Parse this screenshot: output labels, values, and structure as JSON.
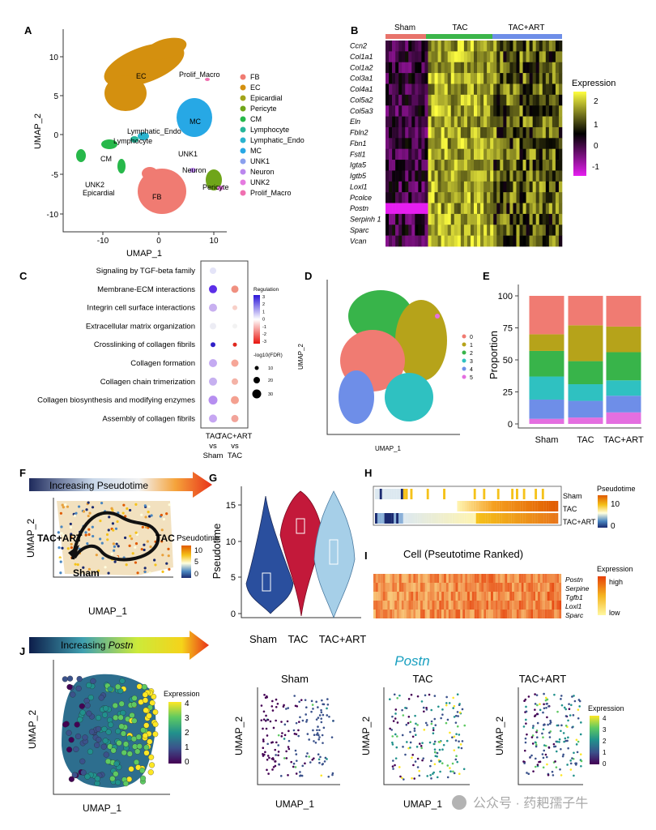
{
  "panel_letters": [
    "A",
    "B",
    "C",
    "D",
    "E",
    "F",
    "G",
    "H",
    "I",
    "J"
  ],
  "colors": {
    "FB": "#f07b72",
    "EC": "#d4900f",
    "Epicardial": "#a2a41a",
    "Pericyte": "#6fa519",
    "CM": "#27b84a",
    "Lymphocyte": "#27b69a",
    "Lymphatic_Endo": "#2ab3cf",
    "MC": "#27a8e5",
    "UNK1": "#8aa0ee",
    "Neuron": "#bb87ee",
    "UNK2": "#e57be0",
    "Prolif_Macro": "#f070b0",
    "sham": "#e8736b",
    "tac": "#3bb54a",
    "tacart": "#6e8ee8",
    "heat_low": "#e61ef0",
    "heat_mid": "#000000",
    "heat_high": "#ffff40",
    "viol_sham": "#2a4f9e",
    "viol_tac": "#c3193a",
    "viol_tacart": "#a6cfe8",
    "d0": "#f07b72",
    "d1": "#b6a31a",
    "d2": "#38b44a",
    "d3": "#2fc1c1",
    "d4": "#6e8ee8",
    "d5": "#e46fe0"
  },
  "panelA": {
    "xlabel": "UMAP_1",
    "ylabel": "UMAP_2",
    "xticks": [
      "-10",
      "0",
      "10"
    ],
    "yticks": [
      "10",
      "5",
      "0",
      "-5",
      "-10"
    ],
    "legend": [
      "FB",
      "EC",
      "Epicardial",
      "Pericyte",
      "CM",
      "Lymphocyte",
      "Lymphatic_Endo",
      "MC",
      "UNK1",
      "Neuron",
      "UNK2",
      "Prolif_Macro"
    ],
    "cluster_labels": [
      "EC",
      "Prolif_Macro",
      "MC",
      "Lymphatic_Endo",
      "Lymphocyte",
      "CM",
      "UNK1",
      "Neuron",
      "UNK2",
      "Epicardial",
      "FB",
      "Pericyte"
    ]
  },
  "panelB": {
    "groups": [
      "Sham",
      "TAC",
      "TAC+ART"
    ],
    "genes": [
      "Ccn2",
      "Col1a1",
      "Col1a2",
      "Col3a1",
      "Col4a1",
      "Col5a2",
      "Col5a3",
      "Eln",
      "Fbln2",
      "Fbn1",
      "Fstl1",
      "Igta5",
      "Igtb5",
      "Loxl1",
      "Pcolce",
      "Postn",
      "Serpinh 1",
      "Sparc",
      "Vcan"
    ],
    "legend_title": "Expression",
    "legend_ticks": [
      "2",
      "1",
      "0",
      "-1"
    ]
  },
  "panelC": {
    "terms": [
      "Signaling by TGF-beta family",
      "Membrane-ECM interactions",
      "Integrin cell surface interactions",
      "Extracellular matrix organization",
      "Crosslinking of collagen fibrils",
      "Collagen formation",
      "Collagen chain trimerization",
      "Collagen biosynthesis and modifying enzymes",
      "Assembly of collagen fibrils"
    ],
    "comparisons": [
      "TAC vs Sham",
      "TAC+ART vs TAC"
    ],
    "reg_title": "Regulation",
    "reg_ticks": [
      "3",
      "2",
      "1",
      "0",
      "-1",
      "-2",
      "-3"
    ],
    "size_title": "-log10(FDR)",
    "size_ticks": [
      "10",
      "20",
      "30"
    ]
  },
  "panelD": {
    "xlabel": "UMAP_1",
    "ylabel": "UMAP_2",
    "legend": [
      "0",
      "1",
      "2",
      "3",
      "4",
      "5"
    ]
  },
  "chart_data": {
    "type": "bar",
    "title": "",
    "xlabel": "",
    "ylabel": "Proportion",
    "categories": [
      "Sham",
      "TAC",
      "TAC+ART"
    ],
    "ylim": [
      0,
      100
    ],
    "yticks": [
      "100",
      "75",
      "50",
      "25",
      "0"
    ],
    "series": [
      {
        "color": "#e46fe0",
        "values": [
          4,
          5,
          9
        ]
      },
      {
        "color": "#6e8ee8",
        "values": [
          15,
          13,
          13
        ]
      },
      {
        "color": "#2fc1c1",
        "values": [
          18,
          13,
          12
        ]
      },
      {
        "color": "#38b44a",
        "values": [
          20,
          18,
          22
        ]
      },
      {
        "color": "#b6a31a",
        "values": [
          13,
          28,
          20
        ]
      },
      {
        "color": "#f07b72",
        "values": [
          30,
          23,
          24
        ]
      }
    ]
  },
  "panelF": {
    "banner": "Increasing Pseudotime",
    "xlabel": "UMAP_1",
    "ylabel": "UMAP_2",
    "legend_title": "Pseudotime",
    "legend_ticks": [
      "10",
      "5",
      "0"
    ],
    "labels": [
      "TAC+ART",
      "TAC",
      "Sham"
    ]
  },
  "panelG": {
    "ylabel": "Pseudotime",
    "yticks": [
      "15",
      "10",
      "5",
      "0"
    ],
    "groups": [
      "Sham",
      "TAC",
      "TAC+ART"
    ]
  },
  "panelH": {
    "rows": [
      "Sham",
      "TAC",
      "TAC+ART"
    ],
    "legend_title": "Pseudotime",
    "legend_ticks": [
      "10",
      "0"
    ]
  },
  "panelI": {
    "title": "Cell (Pseutotime Ranked)",
    "genes": [
      "Postn",
      "Serpine",
      "Tgfb1",
      "Loxl1",
      "Sparc"
    ],
    "legend_title": "Expression",
    "legend_ticks": [
      "high",
      "low"
    ]
  },
  "panelJ": {
    "banner_prefix": "Increasing ",
    "banner_gene": "Postn",
    "title": "Postn",
    "xlabel": "UMAP_1",
    "ylabel": "UMAP_2",
    "legend_title": "Expression",
    "legend_ticks": [
      "4",
      "3",
      "2",
      "1",
      "0"
    ],
    "small_titles": [
      "Sham",
      "TAC",
      "TAC+ART"
    ],
    "small_legend_title": "Expression",
    "small_legend_ticks": [
      "4",
      "3",
      "2",
      "1",
      "0"
    ]
  },
  "watermark": "公众号 · 药耙孺子牛"
}
